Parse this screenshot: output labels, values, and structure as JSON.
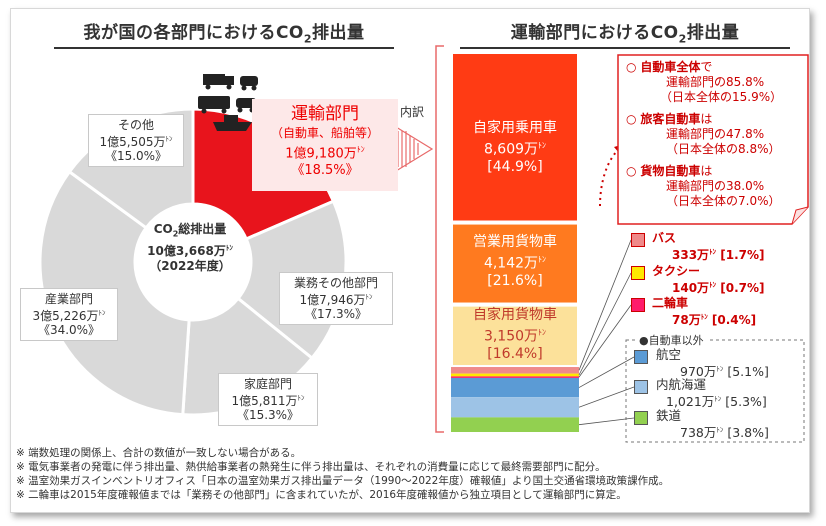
{
  "left": {
    "title_main": "我が国の各部門におけるCO",
    "title_sub": "2",
    "title_tail": "排出量"
  },
  "right": {
    "title_main": "運輸部門におけるCO",
    "title_sub": "2",
    "title_tail": "排出量"
  },
  "donut_center": {
    "l1_main": "CO",
    "l1_sub": "2",
    "l1_tail": "総排出量",
    "l2": "10億3,668万",
    "l2_unit": "ﾄﾝ",
    "l3": "（2022年度）"
  },
  "transport": {
    "name": "運輸部門",
    "detail": "（自動車、船舶等）",
    "value": "1億9,180万",
    "unit": "ﾄﾝ",
    "pct": "《18.5%》"
  },
  "naiyaku": "内訳",
  "labels": {
    "other": {
      "name": "その他",
      "value": "1億5,505万",
      "unit": "ﾄﾝ",
      "pct": "《15.0%》"
    },
    "business": {
      "name": "業務その他部門",
      "value": "1億7,946万",
      "unit": "ﾄﾝ",
      "pct": "《17.3%》"
    },
    "household": {
      "name": "家庭部門",
      "value": "1億5,811万",
      "unit": "ﾄﾝ",
      "pct": "《15.3%》"
    },
    "industry": {
      "name": "産業部門",
      "value": "3億5,226万",
      "unit": "ﾄﾝ",
      "pct": "《34.0%》"
    }
  },
  "bars": {
    "car": {
      "name": "自家用乗用車",
      "value": "8,609万",
      "unit": "ﾄﾝ",
      "pct": "[44.9%]"
    },
    "truck_commercial": {
      "name": "営業用貨物車",
      "value": "4,142万",
      "unit": "ﾄﾝ",
      "pct": "[21.6%]"
    },
    "truck_private": {
      "name": "自家用貨物車",
      "value": "3,150万",
      "unit": "ﾄﾝ",
      "pct": "[16.4%]"
    }
  },
  "callout": [
    {
      "mark": "○",
      "bold": "自動車全体",
      "rest": "で",
      "l2": "運輸部門の85.8%",
      "l3": "（日本全体の15.9%）"
    },
    {
      "mark": "○",
      "bold": "旅客自動車",
      "rest": "は",
      "l2": "運輸部門の47.8%",
      "l3": "（日本全体の8.8%）"
    },
    {
      "mark": "○",
      "bold": "貨物自動車",
      "rest": "は",
      "l2": "運輸部門の38.0%",
      "l3": "（日本全体の7.0%）"
    }
  ],
  "small_legend": {
    "bus": {
      "name": "バス",
      "value": "333万",
      "unit": "ﾄﾝ",
      "pct": "[1.7%]"
    },
    "taxi": {
      "name": "タクシー",
      "value": "140万",
      "unit": "ﾄﾝ",
      "pct": "[0.7%]"
    },
    "moto": {
      "name": "二輪車",
      "value": "78万",
      "unit": "ﾄﾝ",
      "pct": "[0.4%]"
    }
  },
  "non_car": {
    "header": "●自動車以外",
    "air": {
      "name": "航空",
      "value": "970万",
      "unit": "ﾄﾝ",
      "pct": "[5.1%]"
    },
    "ship": {
      "name": "内航海運",
      "value": "1,021万",
      "unit": "ﾄﾝ",
      "pct": "[5.3%]"
    },
    "rail": {
      "name": "鉄道",
      "value": "738万",
      "unit": "ﾄﾝ",
      "pct": "[3.8%]"
    }
  },
  "notes": [
    "※ 端数処理の関係上、合計の数値が一致しない場合がある。",
    "※ 電気事業者の発電に伴う排出量、熱供給事業者の熱発生に伴う排出量は、それぞれの消費量に応じて最終需要部門に配分。",
    "※ 温室効果ガスインベントリオフィス「日本の温室効果ガス排出量データ（1990～2022年度）確報値」より国土交通省環境政策課作成。",
    "※ 二輪車は2015年度確報値までは「業務その他部門」に含まれていたが、2016年度確報値から独立項目として運輸部門に算定。"
  ],
  "colors": {
    "transport_red": "#e8141c",
    "donut_grey": "#d9d9d9",
    "bar_car": "#ff3b14",
    "bar_truck_comm": "#ff7a1f",
    "bar_truck_priv": "#fce19a",
    "bus": "#ef8a8a",
    "taxi": "#ffe800",
    "moto": "#ff1c6b",
    "air": "#5b9bd5",
    "ship": "#9dc3e6",
    "rail": "#92d050"
  },
  "chart_data": [
    {
      "type": "pie",
      "title": "我が国の各部門におけるCO2排出量",
      "unit": "万トン",
      "total": 103668,
      "categories": [
        "運輸部門",
        "業務その他部門",
        "家庭部門",
        "産業部門",
        "その他"
      ],
      "values": [
        19180,
        17946,
        15811,
        35226,
        15505
      ],
      "percents": [
        18.5,
        17.3,
        15.3,
        34.0,
        15.0
      ]
    },
    {
      "type": "bar",
      "title": "運輸部門におけるCO2排出量",
      "unit": "万トン",
      "stacked": true,
      "categories": [
        "自家用乗用車",
        "営業用貨物車",
        "自家用貨物車",
        "バス",
        "タクシー",
        "二輪車",
        "航空",
        "内航海運",
        "鉄道"
      ],
      "values": [
        8609,
        4142,
        3150,
        333,
        140,
        78,
        970,
        1021,
        738
      ],
      "percents": [
        44.9,
        21.6,
        16.4,
        1.7,
        0.7,
        0.4,
        5.1,
        5.3,
        3.8
      ]
    }
  ]
}
